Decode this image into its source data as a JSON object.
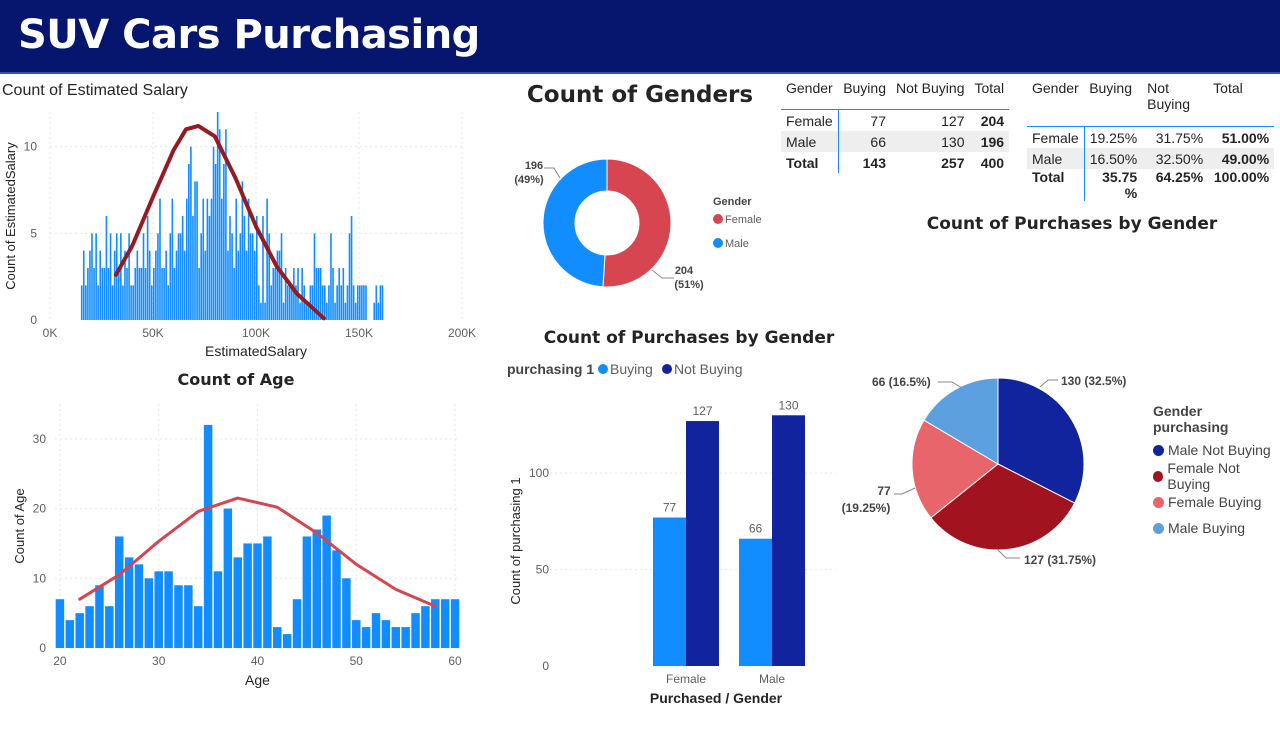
{
  "header": {
    "title": "SUV Cars Purchasing"
  },
  "colors": {
    "buying": "#118dff",
    "not_buying": "#12239e",
    "female": "#d64550",
    "male": "#118dff",
    "curve_dark": "#951a22",
    "curve_light": "#d64550"
  },
  "salary_chart": {
    "title": "Count of Estimated Salary"
  },
  "age_chart": {
    "title": "Count of Age"
  },
  "gender_donut": {
    "title": "Count of Genders"
  },
  "purchases_bar": {
    "title": "Count of Purchases by Gender"
  },
  "purchases_pie": {
    "title": "Count of Purchases by Gender"
  },
  "count_table": {
    "headers": [
      "Gender",
      "Buying",
      "Not Buying",
      "Total"
    ],
    "rows": [
      [
        "Female",
        "77",
        "127",
        "204"
      ],
      [
        "Male",
        "66",
        "130",
        "196"
      ]
    ],
    "total": [
      "Total",
      "143",
      "257",
      "400"
    ]
  },
  "pct_table": {
    "headers": [
      "Gender",
      "Buying",
      "Not Buying",
      "Total"
    ],
    "rows": [
      [
        "Female",
        "19.25%",
        "31.75%",
        "51.00%"
      ],
      [
        "Male",
        "16.50%",
        "32.50%",
        "49.00%"
      ]
    ],
    "total": [
      "Total",
      "35.75 %",
      "64.25%",
      "100.00%"
    ]
  },
  "chart_data": [
    {
      "id": "salary",
      "type": "bar",
      "title": "Count of Estimated Salary",
      "xlabel": "EstimatedSalary",
      "ylabel": "Count of EstimatedSalary",
      "xlim": [
        0,
        200000
      ],
      "ylim": [
        0,
        12
      ],
      "x_ticks": [
        "0K",
        "50K",
        "100K",
        "150K",
        "200K"
      ],
      "y_ticks": [
        "0",
        "5",
        "10"
      ],
      "x_range": [
        15000,
        150000
      ],
      "bin_width": 1000,
      "values": [
        2,
        4,
        2,
        3,
        4,
        5,
        3,
        5,
        2,
        4,
        3,
        3,
        6,
        3,
        5,
        2,
        4,
        5,
        3,
        5,
        2,
        4,
        3,
        5,
        2,
        2,
        3,
        4,
        3,
        3,
        5,
        3,
        6,
        4,
        2,
        3,
        4,
        5,
        7,
        3,
        3,
        4,
        2,
        5,
        7,
        3,
        4,
        5,
        5,
        6,
        4,
        7,
        9,
        10,
        6,
        8,
        8,
        3,
        5,
        7,
        4,
        7,
        6,
        7,
        10,
        9,
        12,
        11,
        7,
        9,
        11,
        4,
        6,
        5,
        3,
        7,
        4,
        5,
        8,
        6,
        4,
        7,
        5,
        5,
        4,
        6,
        2,
        1,
        6,
        1,
        7,
        5,
        2,
        3,
        3,
        4,
        4,
        5,
        1,
        3,
        2,
        2,
        2,
        3,
        2,
        3,
        1,
        3,
        2,
        1,
        1,
        2,
        2,
        5,
        3,
        3,
        3,
        2,
        2,
        1,
        2,
        5,
        3,
        1,
        2,
        3,
        2,
        3,
        1,
        2,
        5,
        6,
        2,
        1,
        2,
        2,
        2,
        2,
        2,
        0,
        0,
        0,
        1,
        2,
        1,
        2,
        2
      ],
      "curve": [
        [
          32000,
          2.6
        ],
        [
          40000,
          4.3
        ],
        [
          50000,
          7.1
        ],
        [
          60000,
          9.8
        ],
        [
          66000,
          11
        ],
        [
          72000,
          11.2
        ],
        [
          80000,
          10.6
        ],
        [
          90000,
          8.2
        ],
        [
          100000,
          5.4
        ],
        [
          110000,
          3.1
        ],
        [
          120000,
          1.5
        ],
        [
          133000,
          0.1
        ]
      ],
      "grid": true
    },
    {
      "id": "age",
      "type": "bar",
      "title": "Count of Age",
      "xlabel": "Age",
      "ylabel": "Count of Age",
      "xlim": [
        19.5,
        60.5
      ],
      "ylim": [
        0,
        35
      ],
      "x_ticks": [
        "20",
        "30",
        "40",
        "50",
        "60"
      ],
      "y_ticks": [
        "0",
        "10",
        "20",
        "30"
      ],
      "categories": [
        18,
        19,
        20,
        21,
        22,
        23,
        24,
        25,
        26,
        27,
        28,
        29,
        30,
        31,
        32,
        33,
        34,
        35,
        36,
        37,
        38,
        39,
        40,
        41,
        42,
        43,
        44,
        45,
        46,
        47,
        48,
        49,
        50,
        51,
        52,
        53,
        54,
        55,
        56,
        57,
        58,
        59,
        60
      ],
      "values": [
        0,
        0,
        7,
        4,
        5,
        6,
        9,
        6,
        16,
        13,
        12,
        10,
        11,
        11,
        9,
        9,
        6,
        32,
        11,
        20,
        13,
        15,
        15,
        16,
        3,
        2,
        7,
        16,
        17,
        19,
        14,
        10,
        4,
        3,
        5,
        4,
        3,
        3,
        5,
        6,
        7,
        7,
        7
      ],
      "curve": [
        [
          22,
          7
        ],
        [
          26,
          10.5
        ],
        [
          30,
          15.3
        ],
        [
          34,
          19.6
        ],
        [
          38,
          21.5
        ],
        [
          42,
          20.2
        ],
        [
          46,
          16.5
        ],
        [
          50,
          12
        ],
        [
          54,
          8.4
        ],
        [
          58,
          6
        ]
      ],
      "grid": true
    },
    {
      "id": "genders",
      "type": "pie",
      "title": "Count of Genders",
      "legend_title": "Gender",
      "legend_position": "right",
      "categories": [
        "Female",
        "Male"
      ],
      "values": [
        204,
        196
      ],
      "labels": [
        "204\n(51%)",
        "196\n(49%)"
      ]
    },
    {
      "id": "purchases_bar",
      "type": "bar",
      "title": "Count of Purchases by Gender",
      "legend_title": "purchasing 1",
      "legend_position": "top-left",
      "xlabel": "Purchased / Gender",
      "ylabel": "Count of purchasing 1",
      "categories": [
        "Female",
        "Male"
      ],
      "series": [
        {
          "name": "Buying",
          "values": [
            77,
            66
          ]
        },
        {
          "name": "Not Buying",
          "values": [
            127,
            130
          ]
        }
      ],
      "ylim": [
        0,
        140
      ],
      "y_ticks": [
        "0",
        "50",
        "100"
      ]
    },
    {
      "id": "purchases_pie",
      "type": "pie",
      "title": "Count of Purchases by Gender",
      "legend_title": "Gender purchasing",
      "legend_position": "right",
      "categories": [
        "Male Not Buying",
        "Female Not Buying",
        "Female Buying",
        "Male Buying"
      ],
      "values": [
        130,
        127,
        77,
        66
      ],
      "labels": [
        "130 (32.5%)",
        "127 (31.75%)",
        "77\n(19.25%)",
        "66 (16.5%)"
      ],
      "colors": [
        "#12239e",
        "#a1131f",
        "#e8656c",
        "#5da0e0"
      ]
    }
  ]
}
